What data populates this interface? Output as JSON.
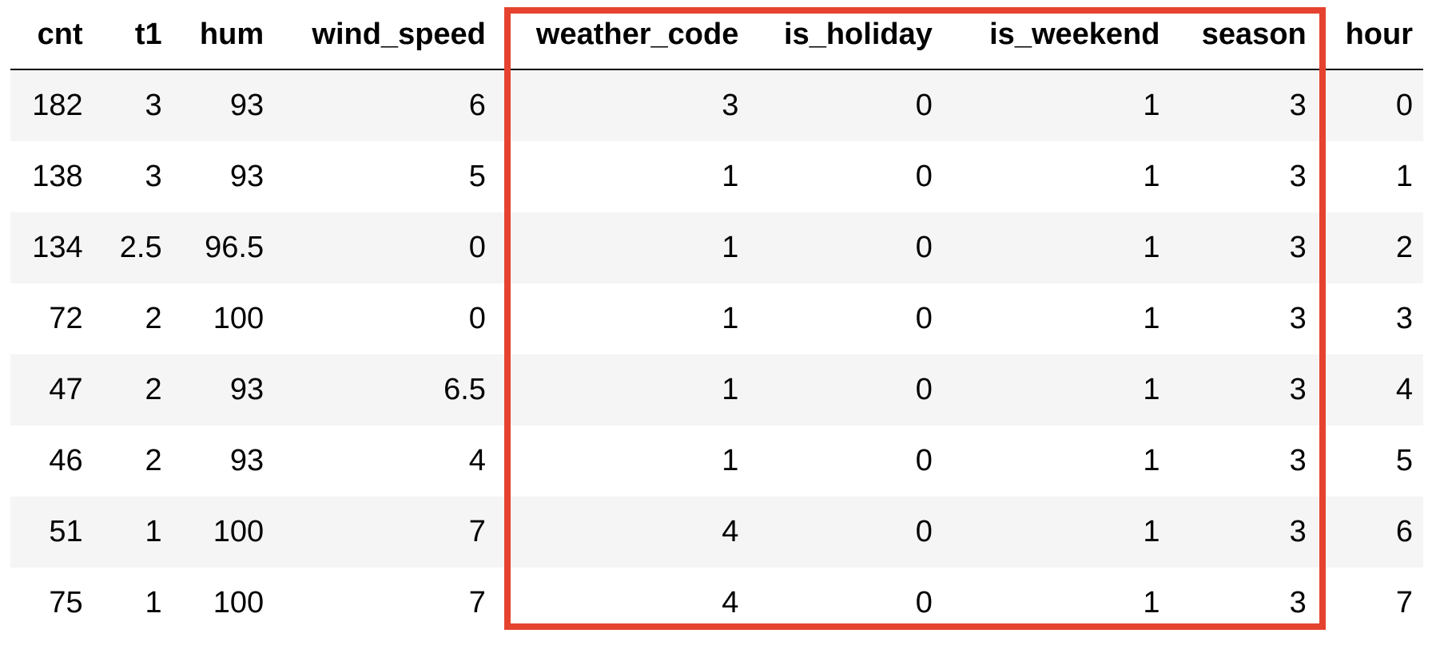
{
  "table": {
    "columns": [
      "cnt",
      "t1",
      "hum",
      "wind_speed",
      "weather_code",
      "is_holiday",
      "is_weekend",
      "season",
      "hour"
    ],
    "rows": [
      [
        "182",
        "3",
        "93",
        "6",
        "3",
        "0",
        "1",
        "3",
        "0"
      ],
      [
        "138",
        "3",
        "93",
        "5",
        "1",
        "0",
        "1",
        "3",
        "1"
      ],
      [
        "134",
        "2.5",
        "96.5",
        "0",
        "1",
        "0",
        "1",
        "3",
        "2"
      ],
      [
        "72",
        "2",
        "100",
        "0",
        "1",
        "0",
        "1",
        "3",
        "3"
      ],
      [
        "47",
        "2",
        "93",
        "6.5",
        "1",
        "0",
        "1",
        "3",
        "4"
      ],
      [
        "46",
        "2",
        "93",
        "4",
        "1",
        "0",
        "1",
        "3",
        "5"
      ],
      [
        "51",
        "1",
        "100",
        "7",
        "4",
        "0",
        "1",
        "3",
        "6"
      ],
      [
        "75",
        "1",
        "100",
        "7",
        "4",
        "0",
        "1",
        "3",
        "7"
      ]
    ]
  },
  "highlight": {
    "color": "#e5432f",
    "columns": [
      "weather_code",
      "is_holiday",
      "is_weekend",
      "season"
    ]
  },
  "colors": {
    "stripe": "#f5f5f5",
    "header_rule": "#000000"
  }
}
